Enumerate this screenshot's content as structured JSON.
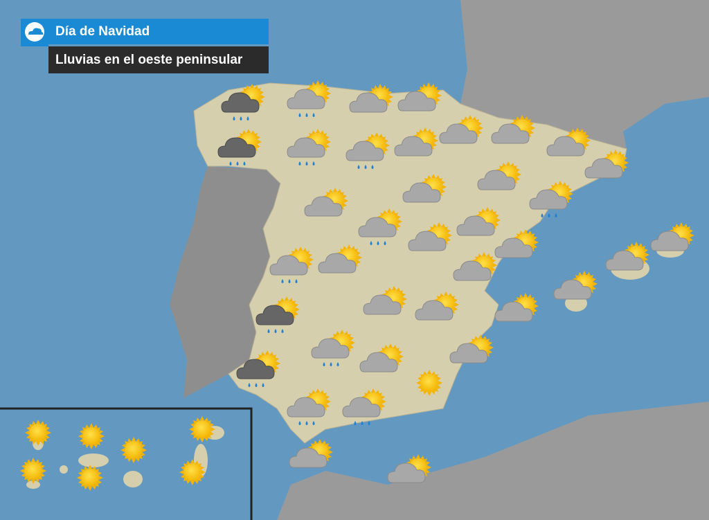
{
  "header": {
    "title": "Día de Navidad",
    "subtitle": "Lluvias en el oeste peninsular"
  }
}
